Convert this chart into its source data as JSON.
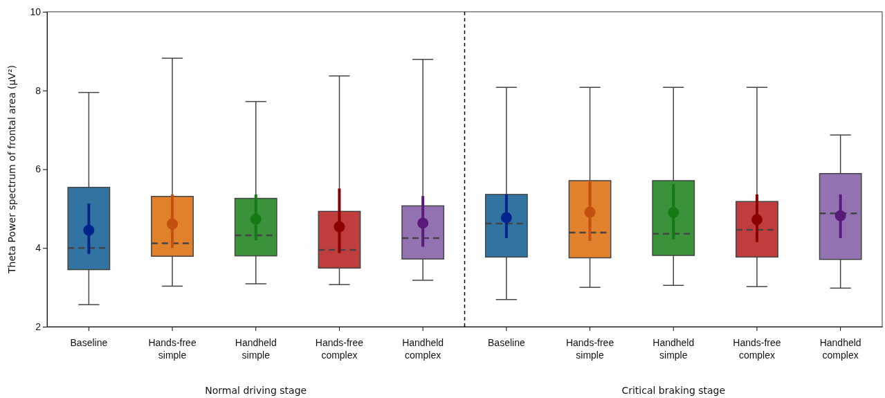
{
  "chart_data": {
    "type": "box",
    "ylabel": "Theta Power spectrum of frontal area (μV²)",
    "categories": [
      "Baseline",
      "Hands-free\nsimple",
      "Handheld\nsimple",
      "Hands-free\ncomplex",
      "Handheld\ncomplex",
      "Baseline",
      "Hands-free\nsimple",
      "Handheld\nsimple",
      "Hands-free\ncomplex",
      "Handheld\ncomplex"
    ],
    "ylim": [
      2,
      10
    ],
    "yticks": [
      2,
      4,
      6,
      8,
      10
    ],
    "colors": [
      "#3274a1",
      "#e1812c",
      "#3a923a",
      "#c03d3e",
      "#9372b2",
      "#3274a1",
      "#e1812c",
      "#3a923a",
      "#c03d3e",
      "#9372b2"
    ],
    "boxes": [
      {
        "low": 2.56,
        "q1": 3.45,
        "median": 4.0,
        "q3": 5.54,
        "high": 7.95
      },
      {
        "low": 3.03,
        "q1": 3.79,
        "median": 4.12,
        "q3": 5.31,
        "high": 8.82
      },
      {
        "low": 3.09,
        "q1": 3.8,
        "median": 4.32,
        "q3": 5.26,
        "high": 7.72
      },
      {
        "low": 3.07,
        "q1": 3.49,
        "median": 3.95,
        "q3": 4.93,
        "high": 8.37
      },
      {
        "low": 3.18,
        "q1": 3.72,
        "median": 4.25,
        "q3": 5.07,
        "high": 8.79
      },
      {
        "low": 2.69,
        "q1": 3.77,
        "median": 4.62,
        "q3": 5.36,
        "high": 8.08
      },
      {
        "low": 3.0,
        "q1": 3.75,
        "median": 4.39,
        "q3": 5.71,
        "high": 8.08
      },
      {
        "low": 3.05,
        "q1": 3.81,
        "median": 4.36,
        "q3": 5.71,
        "high": 8.08
      },
      {
        "low": 3.02,
        "q1": 3.77,
        "median": 4.46,
        "q3": 5.18,
        "high": 8.08
      },
      {
        "low": 2.98,
        "q1": 3.71,
        "median": 4.88,
        "q3": 5.89,
        "high": 6.87
      }
    ],
    "series": [
      {
        "type": "scatter",
        "marker": "circle",
        "colors": [
          "#00248c",
          "#c4500f",
          "#157a15",
          "#8c0000",
          "#5a1a7a",
          "#00248c",
          "#c4500f",
          "#157a15",
          "#8c0000",
          "#5a1a7a"
        ],
        "values": [
          4.45,
          4.61,
          4.73,
          4.54,
          4.63,
          4.77,
          4.91,
          4.9,
          4.72,
          4.82
        ],
        "errors": [
          [
            3.85,
            5.13
          ],
          [
            4.0,
            5.36
          ],
          [
            4.19,
            5.36
          ],
          [
            3.87,
            5.51
          ],
          [
            4.03,
            5.32
          ],
          [
            4.25,
            5.36
          ],
          [
            4.18,
            5.71
          ],
          [
            4.22,
            5.62
          ],
          [
            4.15,
            5.36
          ],
          [
            4.25,
            5.36
          ]
        ]
      }
    ],
    "annotations": [
      "Normal driving stage",
      "Critical braking stage"
    ]
  }
}
